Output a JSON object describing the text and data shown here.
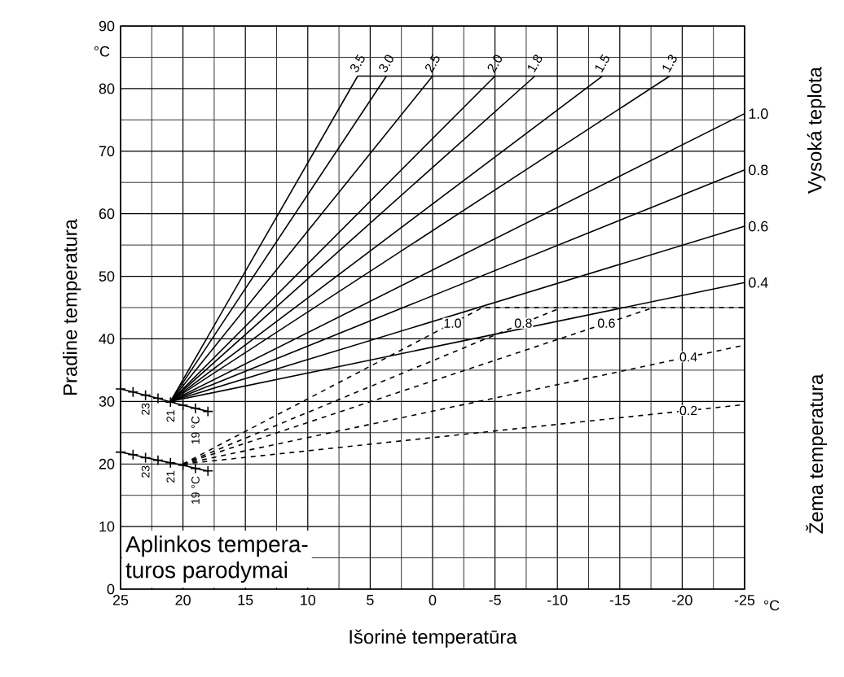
{
  "chart_data": {
    "type": "line",
    "xlabel": "Išorinė temperatūra",
    "ylabel": "Pradine temperatura",
    "xlim": [
      25,
      -25
    ],
    "ylim": [
      0,
      90
    ],
    "xticks": [
      25,
      20,
      15,
      10,
      5,
      0,
      -5,
      -10,
      -15,
      -20,
      -25
    ],
    "yticks": [
      0,
      10,
      20,
      30,
      40,
      50,
      60,
      70,
      80,
      90
    ],
    "grid": true,
    "series": [
      {
        "name": "3.5",
        "color": "#000000",
        "line_style": "solid",
        "x": [
          21,
          6
        ],
        "values": [
          30,
          82
        ]
      },
      {
        "name": "3.0",
        "color": "#000000",
        "line_style": "solid",
        "x": [
          21,
          3.7
        ],
        "values": [
          30,
          82
        ]
      },
      {
        "name": "2.5",
        "color": "#000000",
        "line_style": "solid",
        "x": [
          21,
          0
        ],
        "values": [
          30,
          82
        ]
      },
      {
        "name": "2.0",
        "color": "#000000",
        "line_style": "solid",
        "x": [
          21,
          -5
        ],
        "values": [
          30,
          82
        ]
      },
      {
        "name": "1.8",
        "color": "#000000",
        "line_style": "solid",
        "x": [
          21,
          -8.2
        ],
        "values": [
          30,
          82
        ]
      },
      {
        "name": "1.5",
        "color": "#000000",
        "line_style": "solid",
        "x": [
          21,
          -13.6
        ],
        "values": [
          30,
          82
        ]
      },
      {
        "name": "1.3",
        "color": "#000000",
        "line_style": "solid",
        "x": [
          21,
          -19
        ],
        "values": [
          30,
          82
        ]
      },
      {
        "name": "1.0",
        "color": "#000000",
        "line_style": "solid",
        "x": [
          21,
          -25
        ],
        "values": [
          30,
          76
        ]
      },
      {
        "name": "0.8",
        "color": "#000000",
        "line_style": "solid",
        "x": [
          21,
          -25
        ],
        "values": [
          30,
          67
        ]
      },
      {
        "name": "0.6",
        "color": "#000000",
        "line_style": "solid",
        "x": [
          21,
          -25
        ],
        "values": [
          30,
          58
        ]
      },
      {
        "name": "0.4",
        "color": "#000000",
        "line_style": "solid",
        "x": [
          21,
          -25
        ],
        "values": [
          30,
          49
        ]
      },
      {
        "color": "#000000",
        "line_style": "solid",
        "x": [
          6,
          -25
        ],
        "values": [
          82,
          82
        ]
      },
      {
        "name": "1.0",
        "color": "#000000",
        "line_style": "dashed",
        "x": [
          20,
          -4,
          -25
        ],
        "values": [
          20,
          45,
          45
        ]
      },
      {
        "name": "0.8",
        "color": "#000000",
        "line_style": "dashed",
        "x": [
          20,
          -10.3
        ],
        "values": [
          20,
          45
        ]
      },
      {
        "name": "0.6",
        "color": "#000000",
        "line_style": "dashed",
        "x": [
          20,
          -17.7
        ],
        "values": [
          20,
          45
        ]
      },
      {
        "name": "0.4",
        "color": "#000000",
        "line_style": "dashed",
        "x": [
          20,
          -25
        ],
        "values": [
          20,
          39
        ]
      },
      {
        "name": "0.2",
        "color": "#000000",
        "line_style": "dashed",
        "x": [
          20,
          -25
        ],
        "values": [
          20,
          29.5
        ]
      },
      {
        "color": "#000000",
        "line_style": "solid",
        "marker": "cross",
        "x": [
          25,
          24,
          23,
          22,
          21,
          20,
          19,
          18
        ],
        "values": [
          32.0,
          31.5,
          31.0,
          30.5,
          29.9,
          29.4,
          28.9,
          28.4
        ]
      },
      {
        "color": "#000000",
        "line_style": "solid",
        "marker": "cross",
        "x": [
          25,
          24,
          23,
          22,
          21,
          20,
          19,
          18
        ],
        "values": [
          21.9,
          21.5,
          21.0,
          20.6,
          20.2,
          19.8,
          19.3,
          18.9
        ]
      }
    ],
    "annotations": [
      "°C",
      "°C",
      "Vysoká teplota",
      "Žema temperatura",
      "Aplinkos tempera-",
      "turos parodymai",
      "23",
      "21",
      "19 °C",
      "23",
      "21",
      "19 °C"
    ]
  }
}
